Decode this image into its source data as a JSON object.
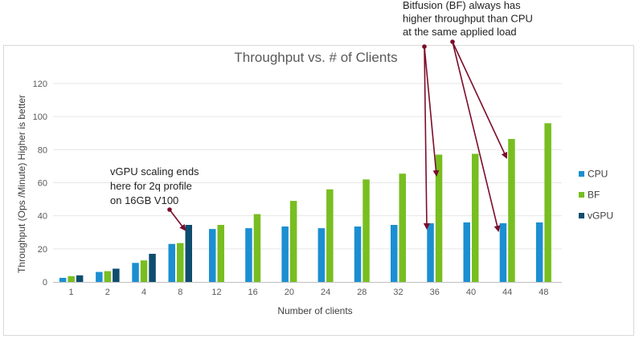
{
  "chart_data": {
    "type": "bar",
    "title": "Throughput vs. # of Clients",
    "xlabel": "Number of clients",
    "ylabel": "Throughput (Ops /Minute)  Higher is better",
    "ylim": [
      0,
      120
    ],
    "yticks": [
      0,
      20,
      40,
      60,
      80,
      100,
      120
    ],
    "grid": true,
    "legend_position": "right",
    "categories": [
      "1",
      "2",
      "4",
      "8",
      "12",
      "16",
      "20",
      "24",
      "28",
      "32",
      "36",
      "40",
      "44",
      "48"
    ],
    "series": [
      {
        "name": "CPU",
        "color": "#1b8fd2",
        "values": [
          2.5,
          6,
          11.5,
          23,
          32,
          32.5,
          33.5,
          32.5,
          33.5,
          34.5,
          35.5,
          36,
          35.5,
          36
        ]
      },
      {
        "name": "BF",
        "color": "#78be20",
        "values": [
          3.5,
          6.5,
          13,
          23.5,
          34.5,
          41,
          49,
          56,
          62,
          65.5,
          77,
          77.5,
          86.5,
          96
        ]
      },
      {
        "name": "vGPU",
        "color": "#0e4d6e",
        "values": [
          4,
          8,
          17,
          34.5,
          null,
          null,
          null,
          null,
          null,
          null,
          null,
          null,
          null,
          null
        ]
      }
    ],
    "annotations": [
      {
        "id": "vgpu-note",
        "lines": [
          "vGPU scaling ends",
          "here for 2q profile",
          "on 16GB V100"
        ]
      },
      {
        "id": "bf-note",
        "lines": [
          "Bitfusion (BF) always has",
          "higher throughput than CPU",
          "at the same applied load"
        ]
      }
    ],
    "annotation_color": "#7b0d2a"
  }
}
